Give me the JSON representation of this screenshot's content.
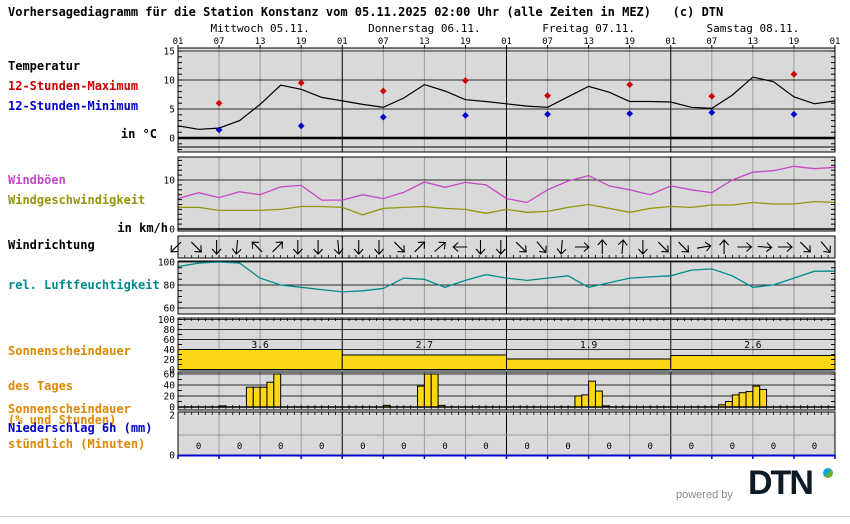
{
  "title": "Vorhersagediagramm für die Station Konstanz vom 05.11.2025 02:00 Uhr (alle Zeiten in MEZ)   (c) DTN",
  "colors": {
    "panel_bg": "#d9d9d9",
    "grid": "#9c9c9c",
    "line_dark": "#2a2a2a",
    "black": "#000000",
    "red": "#cc0000",
    "blue": "#0000cc",
    "magenta": "#c648c6",
    "olive": "#95950a",
    "teal": "#008b8b",
    "orange": "#dd8800",
    "yellow": "#fcd716",
    "footer_gray": "#8a8a8a",
    "logo_dark": "#0e1b26",
    "logo_blue": "#15a3dd",
    "logo_green": "#60b232",
    "divider": "#cfcfcf"
  },
  "panel_labels": {
    "temperature": "Temperatur",
    "max12h": "12-Stunden-Maximum",
    "min12h": "12-Stunden-Minimum",
    "temp_unit": "in °C",
    "gusts": "Windböen",
    "wind_speed": "Windgeschwindigkeit",
    "wind_unit": "in km/h",
    "wind_direction": "Windrichtung",
    "humidity": "rel. Luftfeuchtigkeit",
    "sunshine_day_1": "Sonnenscheindauer",
    "sunshine_day_2": "des Tages",
    "sunshine_day_3": "(% und Stunden)",
    "sunshine_hour_1": "Sonnenscheindauer",
    "sunshine_hour_2": "stündlich (Minuten)",
    "precip": "Niederschlag 6h (mm)"
  },
  "footer": {
    "powered_by": "powered by",
    "brand": "DTN"
  },
  "time_axis": {
    "days": [
      "Mittwoch 05.11.",
      "Donnerstag 06.11.",
      "Freitag 07.11.",
      "Samstag 08.11."
    ],
    "tick_labels": [
      "01",
      "07",
      "13",
      "19",
      "01",
      "07",
      "13",
      "19",
      "01",
      "07",
      "13",
      "19",
      "01",
      "07",
      "13",
      "19",
      "01"
    ]
  },
  "chart_data": [
    {
      "id": "temperature",
      "type": "line",
      "ylabel": "in °C",
      "ylim": [
        -2.5,
        16
      ],
      "yticks": [
        0,
        5,
        10,
        15
      ],
      "x_step_hours": 3,
      "series": [
        {
          "name": "Temperatur",
          "color_key": "black",
          "values": [
            2.1,
            1.5,
            1.7,
            3.0,
            5.8,
            9.1,
            8.4,
            7.0,
            6.4,
            5.8,
            5.3,
            6.9,
            9.2,
            8.1,
            6.6,
            6.3,
            5.9,
            5.5,
            5.3,
            7.1,
            8.9,
            7.9,
            6.3,
            6.3,
            6.2,
            5.3,
            5.1,
            7.4,
            10.5,
            9.7,
            7.1,
            5.9,
            6.4
          ]
        }
      ],
      "markers": [
        {
          "name": "12-Stunden-Maximum",
          "color_key": "red",
          "hours": [
            6,
            18,
            30,
            42,
            54,
            66,
            78,
            90
          ],
          "values": [
            6.0,
            9.5,
            8.1,
            9.9,
            7.3,
            9.2,
            7.2,
            11.0
          ]
        },
        {
          "name": "12-Stunden-Minimum",
          "color_key": "blue",
          "hours": [
            6,
            18,
            30,
            42,
            54,
            66,
            78,
            90
          ],
          "values": [
            1.4,
            2.1,
            3.6,
            3.9,
            4.1,
            4.2,
            4.4,
            4.1
          ]
        }
      ]
    },
    {
      "id": "wind",
      "type": "line",
      "ylabel": "in km/h",
      "ylim": [
        0,
        15
      ],
      "yticks": [
        0,
        10
      ],
      "x_step_hours": 3,
      "series": [
        {
          "name": "Windböen",
          "color_key": "magenta",
          "values": [
            6.2,
            7.4,
            6.4,
            7.6,
            7.0,
            8.6,
            8.9,
            5.9,
            5.9,
            7.0,
            6.2,
            7.5,
            9.6,
            8.5,
            9.5,
            9.0,
            6.2,
            5.4,
            8.0,
            9.8,
            10.9,
            8.8,
            8.0,
            7.0,
            8.8,
            8.0,
            7.4,
            10.0,
            11.6,
            11.9,
            12.8,
            12.3,
            12.6
          ]
        },
        {
          "name": "Windgeschwindigkeit",
          "color_key": "olive",
          "values": [
            4.4,
            4.4,
            3.8,
            3.8,
            3.8,
            4.0,
            4.6,
            4.6,
            4.4,
            2.9,
            4.2,
            4.4,
            4.6,
            4.2,
            4.0,
            3.2,
            4.0,
            3.4,
            3.6,
            4.4,
            5.0,
            4.2,
            3.4,
            4.2,
            4.6,
            4.4,
            4.9,
            4.9,
            5.4,
            5.1,
            5.1,
            5.6,
            5.4
          ]
        }
      ]
    },
    {
      "id": "wind_direction",
      "type": "arrows",
      "note": "arrow rotation in degrees, 0=east, 90=south (pointing direction of wind arrow)",
      "angles_deg": [
        135,
        45,
        90,
        95,
        225,
        315,
        90,
        90,
        85,
        90,
        90,
        45,
        315,
        320,
        180,
        90,
        90,
        45,
        50,
        95,
        0,
        270,
        275,
        90,
        45,
        45,
        350,
        270,
        0,
        5,
        0,
        45,
        50
      ]
    },
    {
      "id": "humidity",
      "type": "line",
      "ylabel": "%",
      "ylim": [
        54,
        101
      ],
      "yticks": [
        60,
        80,
        100
      ],
      "x_step_hours": 3,
      "series": [
        {
          "name": "rel. Luftfeuchtigkeit",
          "color_key": "teal",
          "values": [
            96,
            99,
            100,
            99,
            86,
            80,
            78,
            76,
            74,
            75,
            77,
            86,
            85,
            78,
            84,
            89,
            86,
            84,
            86,
            88,
            78,
            82,
            86,
            87,
            88,
            93,
            94,
            88,
            78,
            80,
            86,
            92,
            92
          ]
        }
      ]
    },
    {
      "id": "sunshine_day",
      "type": "bar",
      "ylabel": "% und Stunden",
      "ylim": [
        0,
        105
      ],
      "yticks": [
        0,
        20,
        40,
        60,
        80,
        100
      ],
      "bars": [
        {
          "day": "Mittwoch 05.11.",
          "percent": 40,
          "hours_label": "3.6"
        },
        {
          "day": "Donnerstag 06.11.",
          "percent": 29,
          "hours_label": "2.7"
        },
        {
          "day": "Freitag 07.11.",
          "percent": 21,
          "hours_label": "1.9"
        },
        {
          "day": "Samstag 08.11.",
          "percent": 28,
          "hours_label": "2.6"
        }
      ]
    },
    {
      "id": "sunshine_hourly",
      "type": "bar",
      "ylabel": "Minuten",
      "ylim": [
        0,
        63
      ],
      "yticks": [
        0,
        20,
        40,
        60
      ],
      "bars": [
        {
          "hour": 6,
          "minutes": 2
        },
        {
          "hour": 10,
          "minutes": 36
        },
        {
          "hour": 11,
          "minutes": 36
        },
        {
          "hour": 12,
          "minutes": 36
        },
        {
          "hour": 13,
          "minutes": 45
        },
        {
          "hour": 14,
          "minutes": 60
        },
        {
          "hour": 30,
          "minutes": 3
        },
        {
          "hour": 35,
          "minutes": 38
        },
        {
          "hour": 36,
          "minutes": 60
        },
        {
          "hour": 37,
          "minutes": 60
        },
        {
          "hour": 38,
          "minutes": 3
        },
        {
          "hour": 58,
          "minutes": 20
        },
        {
          "hour": 59,
          "minutes": 22
        },
        {
          "hour": 60,
          "minutes": 47
        },
        {
          "hour": 61,
          "minutes": 29
        },
        {
          "hour": 62,
          "minutes": 2
        },
        {
          "hour": 79,
          "minutes": 4
        },
        {
          "hour": 80,
          "minutes": 10
        },
        {
          "hour": 81,
          "minutes": 22
        },
        {
          "hour": 82,
          "minutes": 26
        },
        {
          "hour": 83,
          "minutes": 28
        },
        {
          "hour": 84,
          "minutes": 38
        },
        {
          "hour": 85,
          "minutes": 32
        }
      ]
    },
    {
      "id": "precipitation",
      "type": "bar",
      "ylabel": "mm",
      "ylim": [
        0,
        2.2
      ],
      "yticks": [
        0,
        2
      ],
      "values_6h": [
        "0",
        "0",
        "0",
        "0",
        "0",
        "0",
        "0",
        "0",
        "0",
        "0",
        "0",
        "0",
        "0",
        "0",
        "0",
        "0"
      ]
    }
  ]
}
